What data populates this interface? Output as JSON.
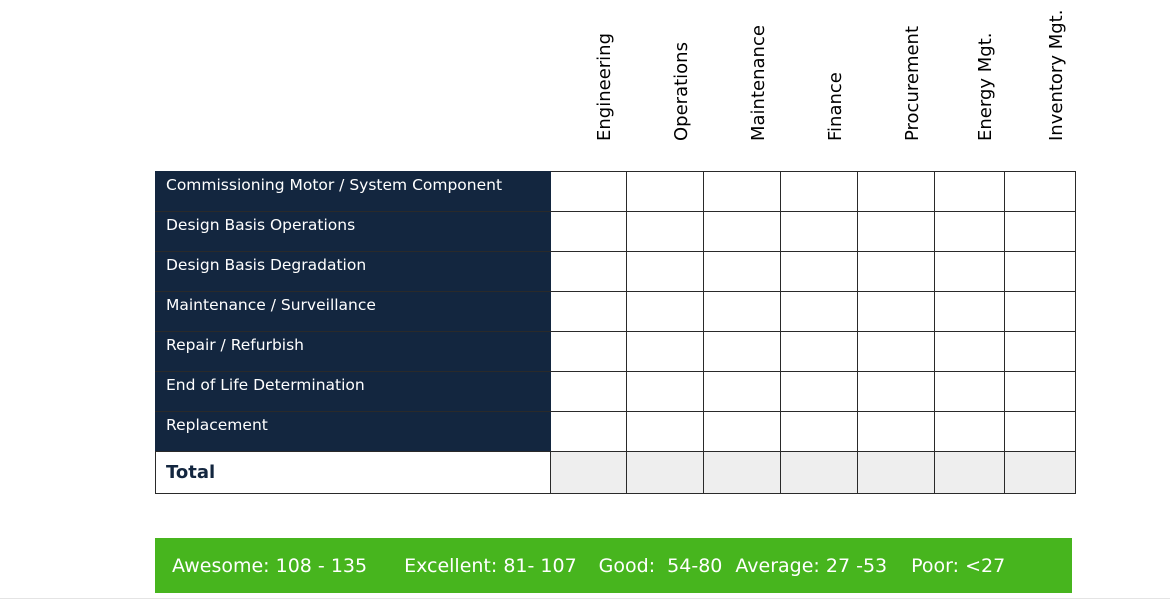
{
  "columns": [
    "Engineering",
    "Operations",
    "Maintenance",
    "Finance",
    "Procurement",
    "Energy Mgt.",
    "Inventory Mgt."
  ],
  "rows": [
    "Commissioning Motor / System Component",
    "Design Basis Operations",
    "Design Basis Degradation",
    "Maintenance / Surveillance",
    "Repair / Refurbish",
    "End of Life Determination",
    "Replacement"
  ],
  "total_label": "Total",
  "legend": [
    "Awesome: 108 - 135",
    "Excellent: 81- 107",
    "Good:  54-80",
    "Average: 27 -53",
    "Poor: <27"
  ],
  "colors": {
    "row_header_bg": "#13263f",
    "legend_bg": "#47b51e",
    "total_row_bg": "#eeeeee"
  }
}
